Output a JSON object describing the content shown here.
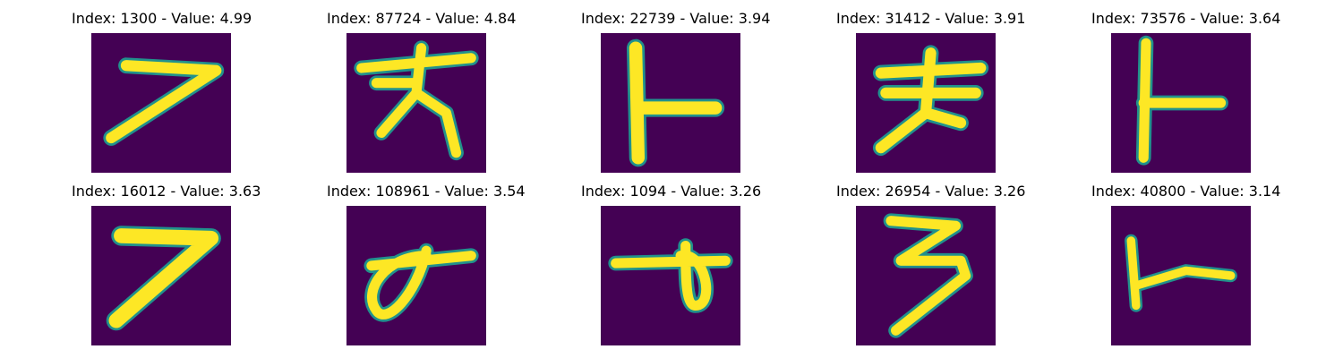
{
  "grid": {
    "rows": 2,
    "cols": 5,
    "colors": {
      "background": "#440154",
      "stroke": "#fde725",
      "edge": "#21918c"
    },
    "items": [
      {
        "title": "Index: 1300 - Value: 4.99",
        "glyph": "seven-stroke"
      },
      {
        "title": "Index: 87724 - Value: 4.84",
        "glyph": "star-cross"
      },
      {
        "title": "Index: 22739 - Value: 3.94",
        "glyph": "t-rotated"
      },
      {
        "title": "Index: 31412 - Value: 3.91",
        "glyph": "cross-double-bar"
      },
      {
        "title": "Index: 73576 - Value: 3.64",
        "glyph": "t-rotated-thin"
      },
      {
        "title": "Index: 16012 - Value: 3.63",
        "glyph": "seven-bold"
      },
      {
        "title": "Index: 108961 - Value: 3.54",
        "glyph": "loop-with-bar"
      },
      {
        "title": "Index: 1094 - Value: 3.26",
        "glyph": "bar-with-loop"
      },
      {
        "title": "Index: 26954 - Value: 3.26",
        "glyph": "three-z"
      },
      {
        "title": "Index: 40800 - Value: 3.14",
        "glyph": "t-rotated-small"
      }
    ]
  }
}
